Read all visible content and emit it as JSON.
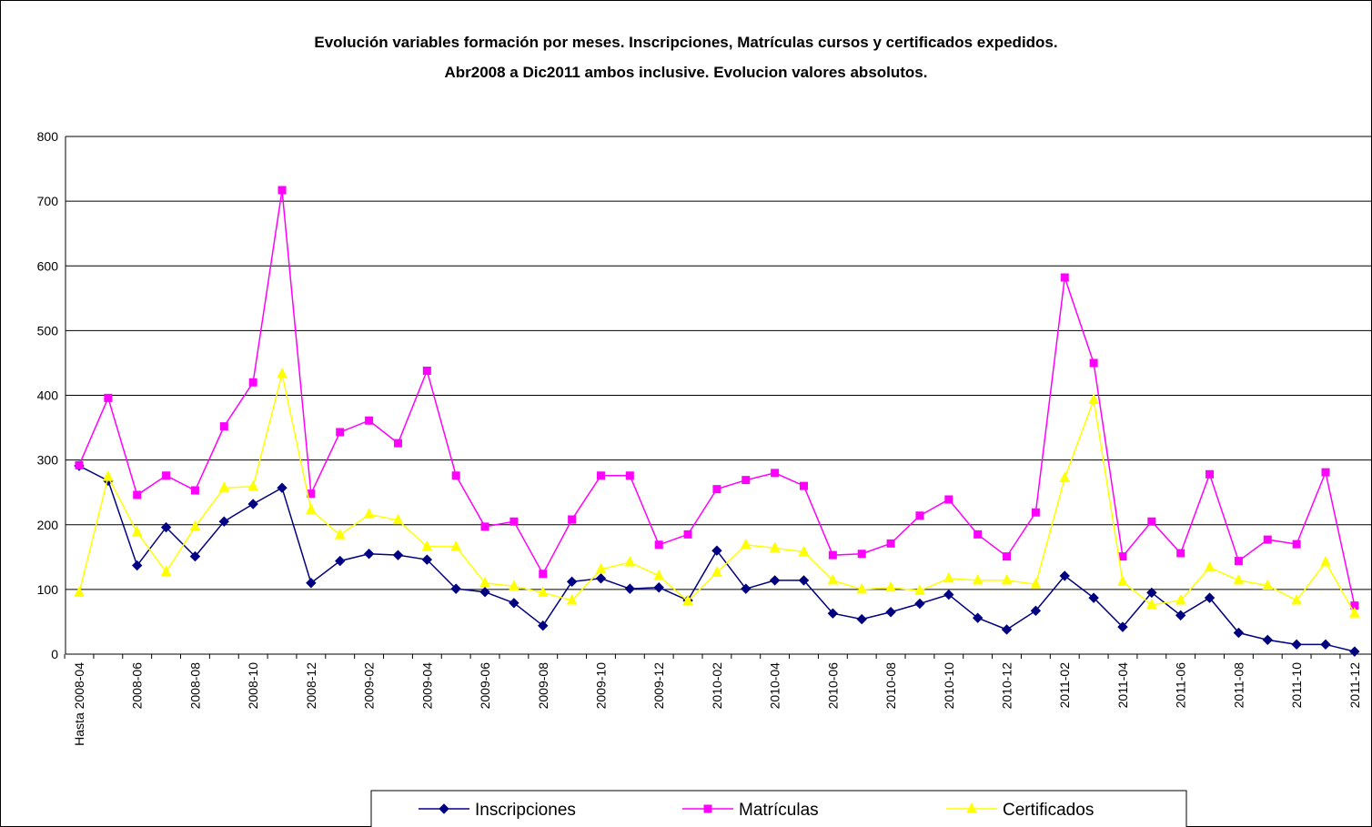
{
  "chart_data": {
    "type": "line",
    "title": "Evolución variables formación por meses.  Inscripciones, Matrículas cursos y certificados expedidos.",
    "subtitle": "Abr2008 a Dic2011 ambos inclusive. Evolucion valores absolutos.",
    "categories": [
      "Hasta 2008-04",
      null,
      "2008-06",
      null,
      "2008-08",
      null,
      "2008-10",
      null,
      "2008-12",
      null,
      "2009-02",
      null,
      "2009-04",
      null,
      "2009-06",
      null,
      "2009-08",
      null,
      "2009-10",
      null,
      "2009-12",
      null,
      "2010-02",
      null,
      "2010-04",
      null,
      "2010-06",
      null,
      "2010-08",
      null,
      "2010-10",
      null,
      "2010-12",
      null,
      "2011-02",
      null,
      "2011-04",
      null,
      "2011-06",
      null,
      "2011-08",
      null,
      "2011-10",
      null,
      "2011-12"
    ],
    "series": [
      {
        "name": "Inscripciones",
        "color": "#000080",
        "marker": "diamond",
        "values": [
          291,
          268,
          137,
          196,
          151,
          205,
          232,
          257,
          110,
          144,
          155,
          153,
          146,
          101,
          96,
          79,
          44,
          112,
          117,
          101,
          103,
          83,
          160,
          101,
          114,
          114,
          63,
          54,
          65,
          78,
          92,
          56,
          38,
          67,
          121,
          87,
          42,
          95,
          60,
          87,
          33,
          22,
          15,
          15,
          4
        ]
      },
      {
        "name": "Matrículas",
        "color": "#ff00ff",
        "marker": "square",
        "values": [
          292,
          396,
          246,
          276,
          253,
          352,
          420,
          717,
          248,
          343,
          361,
          326,
          438,
          276,
          197,
          205,
          124,
          208,
          276,
          276,
          169,
          185,
          255,
          269,
          280,
          260,
          153,
          155,
          171,
          214,
          239,
          185,
          151,
          219,
          582,
          450,
          151,
          205,
          156,
          278,
          144,
          177,
          170,
          281,
          75
        ]
      },
      {
        "name": "Certificados",
        "color": "#ffff00",
        "marker": "triangle",
        "values": [
          95,
          274,
          188,
          127,
          197,
          257,
          259,
          433,
          223,
          184,
          216,
          207,
          166,
          166,
          110,
          105,
          95,
          83,
          131,
          142,
          121,
          82,
          126,
          169,
          164,
          158,
          114,
          100,
          103,
          98,
          117,
          114,
          114,
          108,
          272,
          393,
          112,
          76,
          83,
          134,
          114,
          106,
          83,
          142,
          63
        ]
      }
    ],
    "ylim": [
      0,
      800
    ],
    "yticks": [
      0,
      100,
      200,
      300,
      400,
      500,
      600,
      700,
      800
    ],
    "grid": true,
    "legend": "bottom"
  }
}
